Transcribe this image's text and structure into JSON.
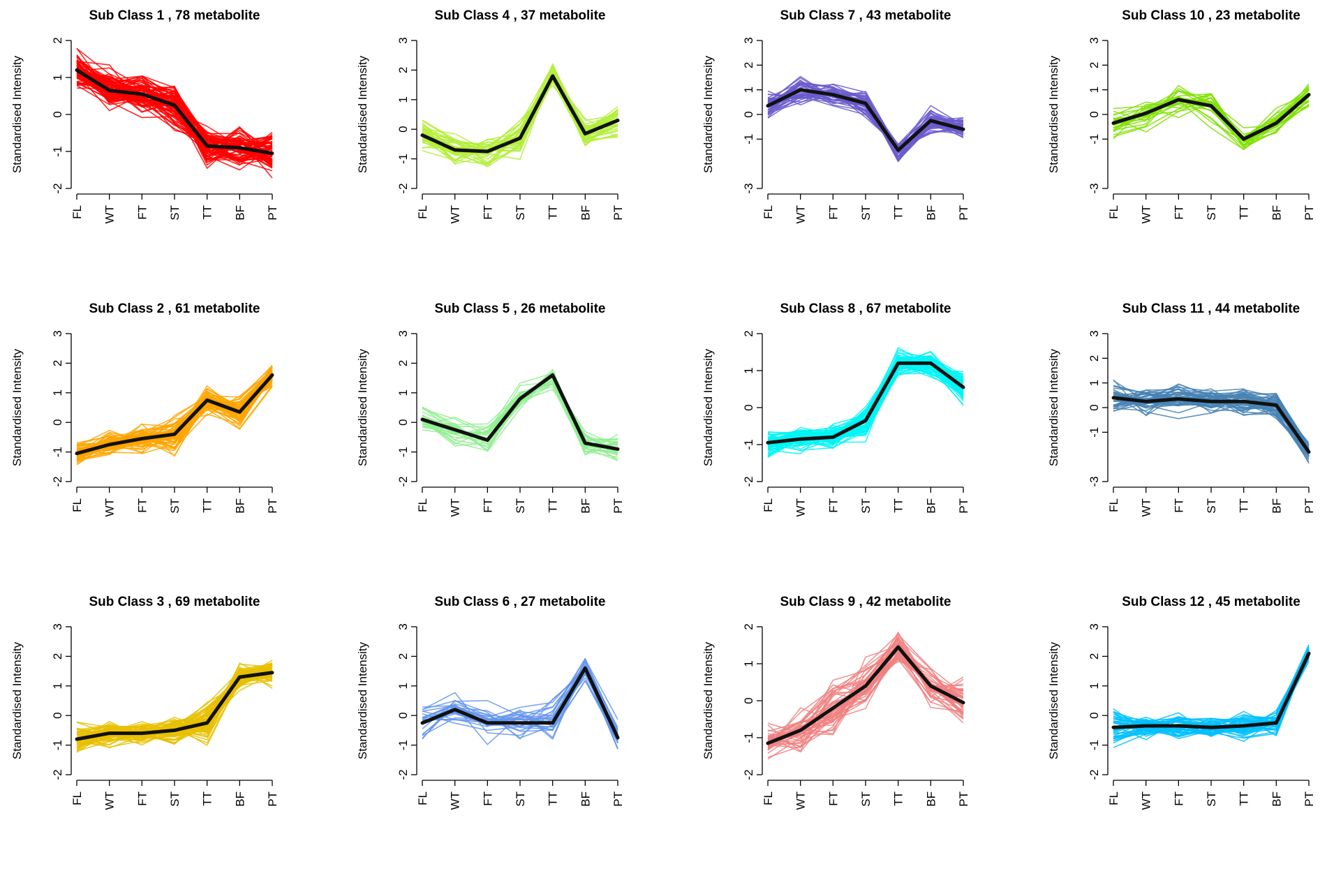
{
  "chart_data": [
    {
      "type": "line",
      "title": "Sub Class  1  , 78 metabolite",
      "ylabel": "Standardised Intensity",
      "categories": [
        "FL",
        "WT",
        "FT",
        "ST",
        "TT",
        "BF",
        "PT"
      ],
      "yticks": [
        -2,
        -1,
        0,
        1,
        2
      ],
      "ylim": [
        -2,
        2
      ],
      "n_profiles": 78,
      "color": "#ff0000",
      "mean": [
        1.2,
        0.65,
        0.55,
        0.25,
        -0.85,
        -0.9,
        -1.05
      ],
      "spread": [
        0.45,
        0.5,
        0.55,
        0.6,
        0.45,
        0.45,
        0.5
      ]
    },
    {
      "type": "line",
      "title": "Sub Class  2  , 61 metabolite",
      "ylabel": "Standardised Intensity",
      "categories": [
        "FL",
        "WT",
        "FT",
        "ST",
        "TT",
        "BF",
        "PT"
      ],
      "yticks": [
        -2,
        -1,
        0,
        1,
        2,
        3
      ],
      "ylim": [
        -2,
        3
      ],
      "n_profiles": 61,
      "color": "#ffa500",
      "mean": [
        -1.05,
        -0.75,
        -0.55,
        -0.4,
        0.75,
        0.35,
        1.6
      ],
      "spread": [
        0.35,
        0.4,
        0.45,
        0.55,
        0.45,
        0.45,
        0.35
      ]
    },
    {
      "type": "line",
      "title": "Sub Class  3  , 69 metabolite",
      "ylabel": "Standardised Intensity",
      "categories": [
        "FL",
        "WT",
        "FT",
        "ST",
        "TT",
        "BF",
        "PT"
      ],
      "yticks": [
        -2,
        -1,
        0,
        1,
        2,
        3
      ],
      "ylim": [
        -2,
        3
      ],
      "n_profiles": 69,
      "color": "#e8c000",
      "mean": [
        -0.8,
        -0.6,
        -0.6,
        -0.5,
        -0.25,
        1.3,
        1.45
      ],
      "spread": [
        0.45,
        0.4,
        0.35,
        0.4,
        0.55,
        0.4,
        0.4
      ]
    },
    {
      "type": "line",
      "title": "Sub Class  4  , 37 metabolite",
      "ylabel": "Standardised Intensity",
      "categories": [
        "FL",
        "WT",
        "FT",
        "ST",
        "TT",
        "BF",
        "PT"
      ],
      "yticks": [
        -2,
        -1,
        0,
        1,
        2,
        3
      ],
      "ylim": [
        -2,
        3
      ],
      "n_profiles": 37,
      "color": "#b3ee3a",
      "mean": [
        -0.2,
        -0.7,
        -0.75,
        -0.3,
        1.8,
        -0.15,
        0.3
      ],
      "spread": [
        0.5,
        0.55,
        0.5,
        0.5,
        0.4,
        0.5,
        0.5
      ]
    },
    {
      "type": "line",
      "title": "Sub Class  5  , 26 metabolite",
      "ylabel": "Standardised Intensity",
      "categories": [
        "FL",
        "WT",
        "FT",
        "ST",
        "TT",
        "BF",
        "PT"
      ],
      "yticks": [
        -2,
        -1,
        0,
        1,
        2,
        3
      ],
      "ylim": [
        -2,
        3
      ],
      "n_profiles": 26,
      "color": "#90ee90",
      "mean": [
        0.1,
        -0.25,
        -0.6,
        0.8,
        1.6,
        -0.7,
        -0.9
      ],
      "spread": [
        0.5,
        0.45,
        0.55,
        0.45,
        0.4,
        0.45,
        0.4
      ]
    },
    {
      "type": "line",
      "title": "Sub Class  6  , 27 metabolite",
      "ylabel": "Standardised Intensity",
      "categories": [
        "FL",
        "WT",
        "FT",
        "ST",
        "TT",
        "BF",
        "PT"
      ],
      "yticks": [
        -2,
        -1,
        0,
        1,
        2,
        3
      ],
      "ylim": [
        -2,
        3
      ],
      "n_profiles": 27,
      "color": "#6495ed",
      "mean": [
        -0.25,
        0.2,
        -0.25,
        -0.25,
        -0.25,
        1.6,
        -0.75
      ],
      "spread": [
        0.6,
        0.7,
        0.6,
        0.55,
        0.65,
        0.5,
        0.6
      ]
    },
    {
      "type": "line",
      "title": "Sub Class  7  , 43 metabolite",
      "ylabel": "Standardised Intensity",
      "categories": [
        "FL",
        "WT",
        "FT",
        "ST",
        "TT",
        "BF",
        "PT"
      ],
      "yticks": [
        -3,
        -1,
        0,
        1,
        2,
        3
      ],
      "ylim": [
        -3,
        3
      ],
      "n_profiles": 43,
      "color": "#6a5acd",
      "mean": [
        0.35,
        1.0,
        0.8,
        0.45,
        -1.45,
        -0.25,
        -0.6
      ],
      "spread": [
        0.55,
        0.55,
        0.45,
        0.5,
        0.4,
        0.5,
        0.4
      ]
    },
    {
      "type": "line",
      "title": "Sub Class  8  , 67 metabolite",
      "ylabel": "Standardised Intensity",
      "categories": [
        "FL",
        "WT",
        "FT",
        "ST",
        "TT",
        "BF",
        "PT"
      ],
      "yticks": [
        -2,
        -1,
        0,
        1,
        2
      ],
      "ylim": [
        -2,
        2
      ],
      "n_profiles": 67,
      "color": "#00f5f5",
      "mean": [
        -0.95,
        -0.85,
        -0.8,
        -0.35,
        1.2,
        1.2,
        0.55
      ],
      "spread": [
        0.35,
        0.3,
        0.3,
        0.4,
        0.35,
        0.35,
        0.45
      ]
    },
    {
      "type": "line",
      "title": "Sub Class  9  , 42 metabolite",
      "ylabel": "Standardised Intensity",
      "categories": [
        "FL",
        "WT",
        "FT",
        "ST",
        "TT",
        "BF",
        "PT"
      ],
      "yticks": [
        -2,
        -1,
        0,
        1,
        2
      ],
      "ylim": [
        -2,
        2
      ],
      "n_profiles": 42,
      "color": "#f08080",
      "mean": [
        -1.15,
        -0.8,
        -0.2,
        0.4,
        1.45,
        0.4,
        -0.05
      ],
      "spread": [
        0.4,
        0.55,
        0.7,
        0.6,
        0.35,
        0.5,
        0.55
      ]
    },
    {
      "type": "line",
      "title": "Sub Class  10  , 23 metabolite",
      "ylabel": "Standardised Intensity",
      "categories": [
        "FL",
        "WT",
        "FT",
        "ST",
        "TT",
        "BF",
        "PT"
      ],
      "yticks": [
        -3,
        -1,
        0,
        1,
        2,
        3
      ],
      "ylim": [
        -3,
        3
      ],
      "n_profiles": 23,
      "color": "#7fe000",
      "mean": [
        -0.35,
        0.05,
        0.6,
        0.35,
        -1.0,
        -0.35,
        0.8
      ],
      "spread": [
        0.6,
        0.65,
        0.7,
        0.7,
        0.5,
        0.6,
        0.55
      ]
    },
    {
      "type": "line",
      "title": "Sub Class  11  , 44 metabolite",
      "ylabel": "Standardised Intensity",
      "categories": [
        "FL",
        "WT",
        "FT",
        "ST",
        "TT",
        "BF",
        "PT"
      ],
      "yticks": [
        -3,
        -1,
        0,
        1,
        2,
        3
      ],
      "ylim": [
        -3,
        3
      ],
      "n_profiles": 44,
      "color": "#4682b4",
      "mean": [
        0.4,
        0.25,
        0.35,
        0.25,
        0.25,
        0.1,
        -1.8
      ],
      "spread": [
        0.6,
        0.5,
        0.6,
        0.5,
        0.5,
        0.5,
        0.45
      ]
    },
    {
      "type": "line",
      "title": "Sub Class  12  , 45 metabolite",
      "ylabel": "Standardised Intensity",
      "categories": [
        "FL",
        "WT",
        "FT",
        "ST",
        "TT",
        "BF",
        "PT"
      ],
      "yticks": [
        -2,
        -1,
        0,
        1,
        2,
        3
      ],
      "ylim": [
        -2,
        3
      ],
      "n_profiles": 45,
      "color": "#00bfff",
      "mean": [
        -0.4,
        -0.35,
        -0.35,
        -0.4,
        -0.35,
        -0.25,
        2.1
      ],
      "spread": [
        0.55,
        0.45,
        0.4,
        0.35,
        0.45,
        0.4,
        0.25
      ]
    }
  ]
}
